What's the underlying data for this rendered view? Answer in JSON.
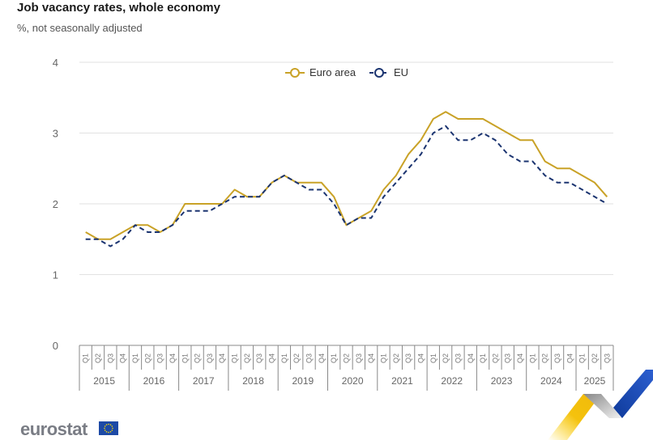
{
  "header": {
    "title": "Job vacancy rates, whole economy",
    "subtitle": "%, not seasonally adjusted"
  },
  "branding": {
    "logo_text": "eurostat",
    "flag_icon": "eu-flag-icon"
  },
  "colors": {
    "euro_area": "#c9a227",
    "eu": "#1b3470",
    "grid": "#e2e2e2",
    "axis": "#888888"
  },
  "chart_data": {
    "type": "line",
    "title": "Job vacancy rates, whole economy",
    "subtitle": "%, not seasonally adjusted",
    "xlabel": "",
    "ylabel": "",
    "ylim": [
      0,
      4
    ],
    "yticks": [
      "0",
      "1",
      "2",
      "3",
      "4"
    ],
    "grid": true,
    "legend_position": "top-center",
    "years": [
      "2015",
      "2016",
      "2017",
      "2018",
      "2019",
      "2020",
      "2021",
      "2022",
      "2023",
      "2024",
      "2025"
    ],
    "quarters_per_year": [
      4,
      4,
      4,
      4,
      4,
      4,
      4,
      4,
      4,
      4,
      3
    ],
    "quarter_labels": [
      "Q1",
      "Q2",
      "Q3",
      "Q4"
    ],
    "series": [
      {
        "name": "Euro area",
        "style": "solid",
        "values": [
          1.6,
          1.5,
          1.5,
          1.6,
          1.7,
          1.7,
          1.6,
          1.7,
          2.0,
          2.0,
          2.0,
          2.0,
          2.2,
          2.1,
          2.1,
          2.3,
          2.4,
          2.3,
          2.3,
          2.3,
          2.1,
          1.7,
          1.8,
          1.9,
          2.2,
          2.4,
          2.7,
          2.9,
          3.2,
          3.3,
          3.2,
          3.2,
          3.2,
          3.1,
          3.0,
          2.9,
          2.9,
          2.6,
          2.5,
          2.5,
          2.4,
          2.3,
          2.1
        ]
      },
      {
        "name": "EU",
        "style": "dashed",
        "values": [
          1.5,
          1.5,
          1.4,
          1.5,
          1.7,
          1.6,
          1.6,
          1.7,
          1.9,
          1.9,
          1.9,
          2.0,
          2.1,
          2.1,
          2.1,
          2.3,
          2.4,
          2.3,
          2.2,
          2.2,
          2.0,
          1.7,
          1.8,
          1.8,
          2.1,
          2.3,
          2.5,
          2.7,
          3.0,
          3.1,
          2.9,
          2.9,
          3.0,
          2.9,
          2.7,
          2.6,
          2.6,
          2.4,
          2.3,
          2.3,
          2.2,
          2.1,
          2.0
        ]
      }
    ]
  }
}
